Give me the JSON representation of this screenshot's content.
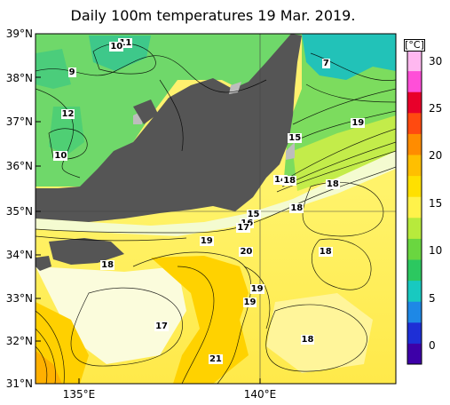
{
  "title": "Daily 100m temperatures 19 Mar. 2019.",
  "lat_labels": [
    "39°N",
    "38°N",
    "37°N",
    "36°N",
    "35°N",
    "34°N",
    "33°N",
    "32°N",
    "31°N"
  ],
  "lon_labels": [
    "135°E",
    "140°E"
  ],
  "colorbar": {
    "unit": "[°C]",
    "ticks": [
      "30",
      "25",
      "20",
      "15",
      "10",
      "5",
      "0"
    ],
    "colors": [
      "#3d00a8",
      "#1e2fd6",
      "#1e88e6",
      "#18c9c0",
      "#2cc860",
      "#6ad640",
      "#b7ea3c",
      "#fff24a",
      "#ffe000",
      "#ffbf00",
      "#ff8c00",
      "#ff4a10",
      "#e8002a",
      "#ff4fd8",
      "#ffb8f0"
    ]
  },
  "contour_labels": [
    {
      "text": "11",
      "lon": 136.45,
      "lat": 38.78
    },
    {
      "text": "10",
      "lon": 136.2,
      "lat": 38.7
    },
    {
      "text": "9",
      "lon": 135.05,
      "lat": 38.1
    },
    {
      "text": "12",
      "lon": 134.85,
      "lat": 37.15
    },
    {
      "text": "10",
      "lon": 134.65,
      "lat": 36.2
    },
    {
      "text": "7",
      "lon": 142.1,
      "lat": 38.3
    },
    {
      "text": "19",
      "lon": 142.9,
      "lat": 36.95
    },
    {
      "text": "15",
      "lon": 141.15,
      "lat": 36.6
    },
    {
      "text": "14",
      "lon": 140.75,
      "lat": 35.65
    },
    {
      "text": "18",
      "lon": 141.0,
      "lat": 35.62
    },
    {
      "text": "18",
      "lon": 142.2,
      "lat": 35.55
    },
    {
      "text": "18",
      "lon": 141.2,
      "lat": 35.0
    },
    {
      "text": "15",
      "lon": 140.0,
      "lat": 34.85
    },
    {
      "text": "16",
      "lon": 139.82,
      "lat": 34.65
    },
    {
      "text": "17",
      "lon": 139.72,
      "lat": 34.55
    },
    {
      "text": "19",
      "lon": 138.7,
      "lat": 34.25
    },
    {
      "text": "20",
      "lon": 139.8,
      "lat": 34.0
    },
    {
      "text": "18",
      "lon": 142.0,
      "lat": 34.0
    },
    {
      "text": "18",
      "lon": 135.95,
      "lat": 33.7
    },
    {
      "text": "19",
      "lon": 140.1,
      "lat": 33.15
    },
    {
      "text": "19",
      "lon": 139.9,
      "lat": 32.85
    },
    {
      "text": "17",
      "lon": 137.45,
      "lat": 32.3
    },
    {
      "text": "18",
      "lon": 141.5,
      "lat": 32.0
    },
    {
      "text": "21",
      "lon": 138.95,
      "lat": 31.55
    }
  ]
}
